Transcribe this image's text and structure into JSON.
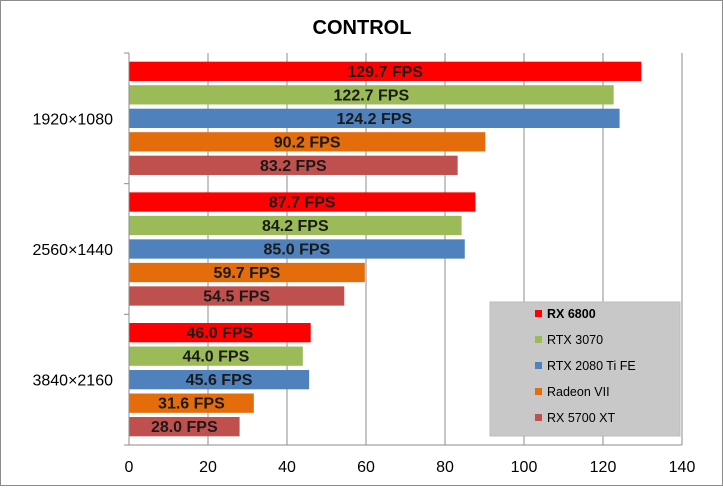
{
  "chart_data": {
    "type": "bar",
    "orientation": "horizontal",
    "title": "CONTROL",
    "categories": [
      "1920×1080",
      "2560×1440",
      "3840×2160"
    ],
    "series": [
      {
        "name": "RX 6800",
        "color": "#ff0000",
        "values": [
          129.7,
          87.7,
          46.0
        ],
        "labels": [
          "129.7 FPS",
          "87.7 FPS",
          "46.0 FPS"
        ]
      },
      {
        "name": "RTX 3070",
        "color": "#9bbb59",
        "values": [
          122.7,
          84.2,
          44.0
        ],
        "labels": [
          "122.7 FPS",
          "84.2 FPS",
          "44.0 FPS"
        ]
      },
      {
        "name": "RTX 2080 Ti FE",
        "color": "#4f81bd",
        "values": [
          124.2,
          85.0,
          45.6
        ],
        "labels": [
          "124.2 FPS",
          "85.0 FPS",
          "45.6 FPS"
        ]
      },
      {
        "name": "Radeon VII",
        "color": "#e46c0a",
        "values": [
          90.2,
          59.7,
          31.6
        ],
        "labels": [
          "90.2 FPS",
          "59.7 FPS",
          "31.6 FPS"
        ]
      },
      {
        "name": "RX 5700 XT",
        "color": "#c0504d",
        "values": [
          83.2,
          54.5,
          28.0
        ],
        "labels": [
          "83.2 FPS",
          "54.5 FPS",
          "28.0 FPS"
        ]
      }
    ],
    "xlim": [
      0,
      140
    ],
    "xticks": [
      "0",
      "20",
      "40",
      "60",
      "80",
      "100",
      "120",
      "140"
    ],
    "grid": true,
    "legend": {
      "placement": "bottom-right",
      "highlight": "RX 6800",
      "background": "#c8c8c8"
    }
  }
}
